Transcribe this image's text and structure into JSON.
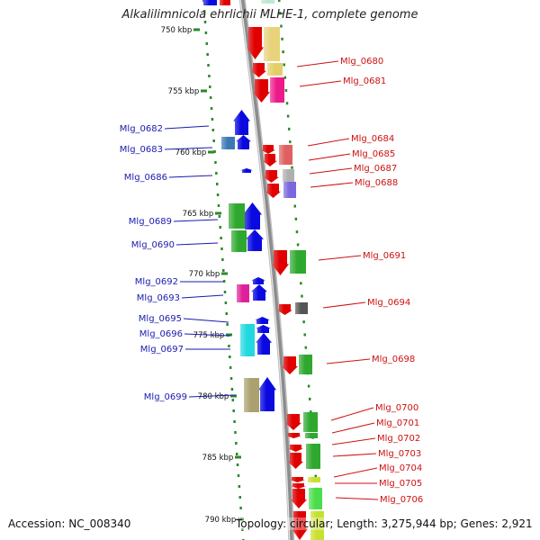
{
  "title": "Alkalilimnicola ehrlichii MLHE-1, complete genome",
  "footer": {
    "accession_label": "Accession:",
    "accession": "NC_008340",
    "topology_label": "Topology:",
    "topology": "circular",
    "length_label": "Length:",
    "length": "3,275,944 bp",
    "genes_label": "Genes:",
    "genes": "2,921"
  },
  "colors": {
    "backbone": "#8c8c8c",
    "kbp_tick": "#2a8a2a",
    "left_label": "#1a1ab0",
    "right_label": "#cc1111"
  },
  "kbp_ticks": [
    {
      "label": "750 kbp",
      "kbp": 750
    },
    {
      "label": "755 kbp",
      "kbp": 755
    },
    {
      "label": "760 kbp",
      "kbp": 760
    },
    {
      "label": "765 kbp",
      "kbp": 765
    },
    {
      "label": "770 kbp",
      "kbp": 770
    },
    {
      "label": "775 kbp",
      "kbp": 775
    },
    {
      "label": "780 kbp",
      "kbp": 780
    },
    {
      "label": "785 kbp",
      "kbp": 785
    },
    {
      "label": "790 kbp",
      "kbp": 790
    }
  ],
  "left_labels": [
    "Mlg_0682",
    "Mlg_0683",
    "Mlg_0686",
    "Mlg_0689",
    "Mlg_0690",
    "Mlg_0692",
    "Mlg_0693",
    "Mlg_0695",
    "Mlg_0696",
    "Mlg_0697",
    "Mlg_0699"
  ],
  "right_labels": [
    "Mlg_0680",
    "Mlg_0681",
    "Mlg_0684",
    "Mlg_0685",
    "Mlg_0687",
    "Mlg_0688",
    "Mlg_0691",
    "Mlg_0694",
    "Mlg_0698",
    "Mlg_0700",
    "Mlg_0701",
    "Mlg_0702",
    "Mlg_0703",
    "Mlg_0704",
    "Mlg_0705",
    "Mlg_0706"
  ]
}
